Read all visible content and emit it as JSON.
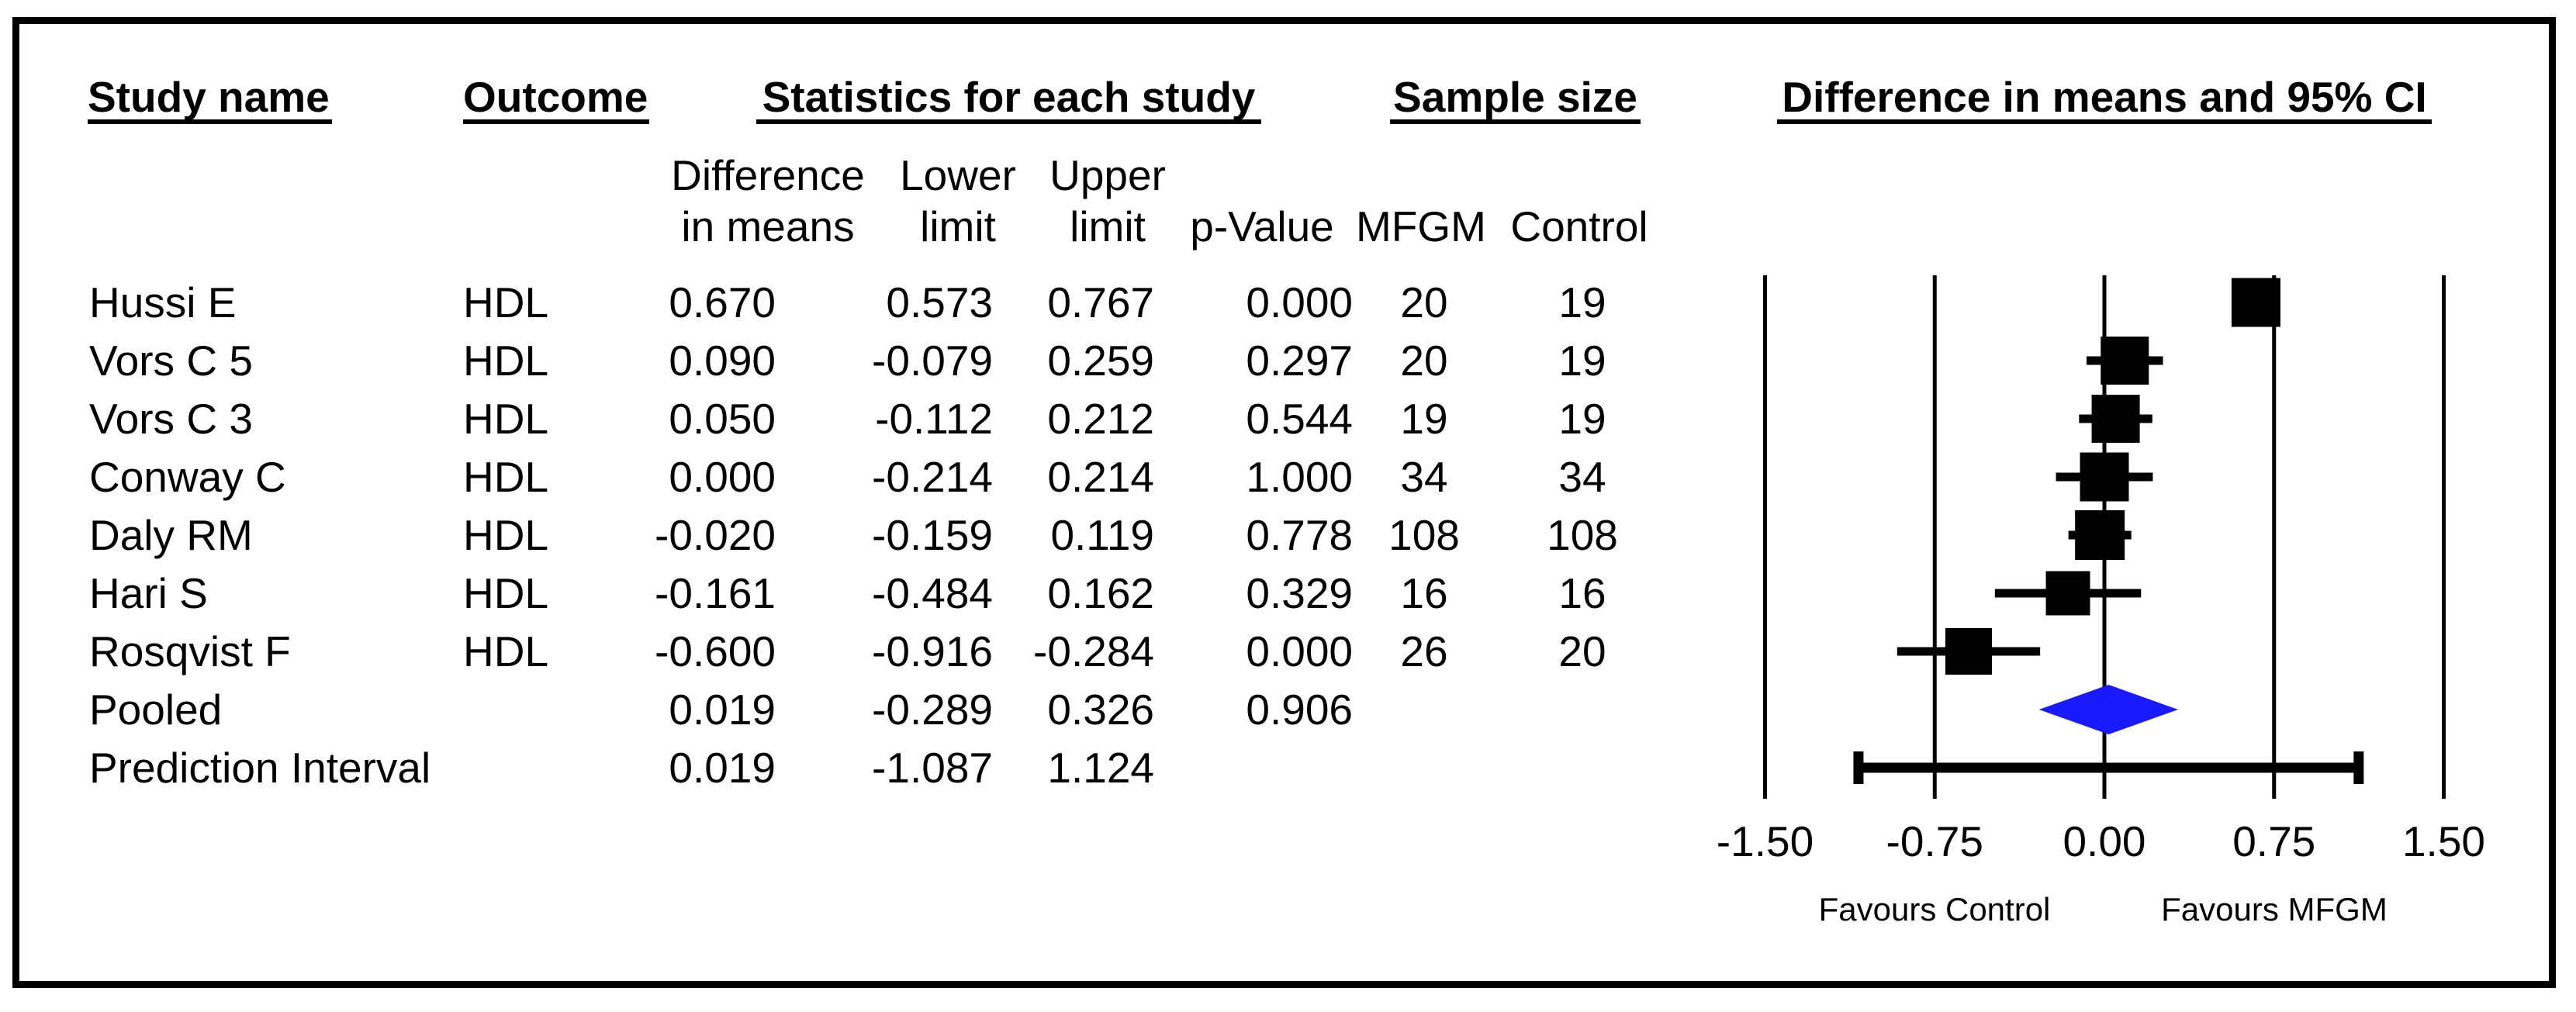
{
  "header": {
    "study": "Study name",
    "outcome": "Outcome",
    "statistics": "Statistics for each study",
    "sample_size": "Sample size",
    "plot_title": "Difference in means and 95% CI"
  },
  "subheader": {
    "difference_line1": "Difference",
    "difference_line2": "in means",
    "lower_line1": "Lower",
    "lower_line2": "limit",
    "upper_line1": "Upper",
    "upper_line2": "limit",
    "p_value": "p-Value",
    "mfgm": "MFGM",
    "control": "Control"
  },
  "rows": [
    {
      "study": "Hussi E",
      "outcome": "HDL",
      "diff": "0.670",
      "lower": "0.573",
      "upper": "0.767",
      "p": "0.000",
      "mfgm": "20",
      "control": "19"
    },
    {
      "study": "Vors C 5",
      "outcome": "HDL",
      "diff": "0.090",
      "lower": "-0.079",
      "upper": "0.259",
      "p": "0.297",
      "mfgm": "20",
      "control": "19"
    },
    {
      "study": "Vors C 3",
      "outcome": "HDL",
      "diff": "0.050",
      "lower": "-0.112",
      "upper": "0.212",
      "p": "0.544",
      "mfgm": "19",
      "control": "19"
    },
    {
      "study": "Conway C",
      "outcome": "HDL",
      "diff": "0.000",
      "lower": "-0.214",
      "upper": "0.214",
      "p": "1.000",
      "mfgm": "34",
      "control": "34"
    },
    {
      "study": "Daly RM",
      "outcome": "HDL",
      "diff": "-0.020",
      "lower": "-0.159",
      "upper": "0.119",
      "p": "0.778",
      "mfgm": "108",
      "control": "108"
    },
    {
      "study": "Hari S",
      "outcome": "HDL",
      "diff": "-0.161",
      "lower": "-0.484",
      "upper": "0.162",
      "p": "0.329",
      "mfgm": "16",
      "control": "16"
    },
    {
      "study": "Rosqvist F",
      "outcome": "HDL",
      "diff": "-0.600",
      "lower": "-0.916",
      "upper": "-0.284",
      "p": "0.000",
      "mfgm": "26",
      "control": "20"
    },
    {
      "study": "Pooled",
      "outcome": "",
      "diff": "0.019",
      "lower": "-0.289",
      "upper": "0.326",
      "p": "0.906",
      "mfgm": "",
      "control": ""
    },
    {
      "study": "Prediction Interval",
      "outcome": "",
      "diff": "0.019",
      "lower": "-1.087",
      "upper": "1.124",
      "p": "",
      "mfgm": "",
      "control": ""
    }
  ],
  "chart_data": {
    "type": "forest",
    "title": "Difference in means and 95% CI",
    "x_axis": {
      "min": -1.5,
      "max": 1.5,
      "tick_values": [
        -1.5,
        -0.75,
        0,
        0.75,
        1.5
      ],
      "tick_labels": [
        "-1.50",
        "-0.75",
        "0.00",
        "0.75",
        "1.50"
      ],
      "grid": true
    },
    "footer_left": "Favours Control",
    "footer_right": "Favours MFGM",
    "markers": [
      {
        "study": "Hussi E",
        "shape": "square",
        "value": 0.67,
        "lower": 0.573,
        "upper": 0.767,
        "size": 63
      },
      {
        "study": "Vors C 5",
        "shape": "square",
        "value": 0.09,
        "lower": -0.079,
        "upper": 0.259,
        "size": 62
      },
      {
        "study": "Vors C 3",
        "shape": "square",
        "value": 0.05,
        "lower": -0.112,
        "upper": 0.212,
        "size": 62
      },
      {
        "study": "Conway C",
        "shape": "square",
        "value": 0.0,
        "lower": -0.214,
        "upper": 0.214,
        "size": 63
      },
      {
        "study": "Daly RM",
        "shape": "square",
        "value": -0.02,
        "lower": -0.159,
        "upper": 0.119,
        "size": 64
      },
      {
        "study": "Hari S",
        "shape": "square",
        "value": -0.161,
        "lower": -0.484,
        "upper": 0.162,
        "size": 57
      },
      {
        "study": "Rosqvist F",
        "shape": "square",
        "value": -0.6,
        "lower": -0.916,
        "upper": -0.284,
        "size": 60
      },
      {
        "study": "Pooled",
        "shape": "diamond",
        "value": 0.019,
        "lower": -0.289,
        "upper": 0.326
      },
      {
        "study": "Prediction Interval",
        "shape": "interval",
        "value": 0.019,
        "lower": -1.087,
        "upper": 1.124
      }
    ]
  },
  "colors": {
    "ink": "#000000",
    "diamond_fill": "#1a1aff",
    "background": "#ffffff"
  }
}
